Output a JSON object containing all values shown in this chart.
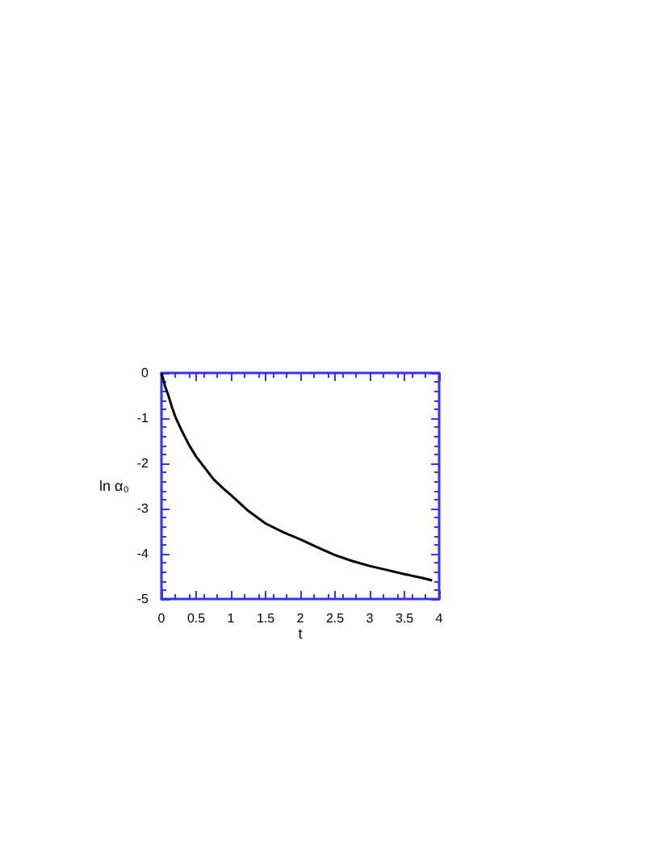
{
  "chart_data": {
    "type": "line",
    "xlabel": "t",
    "ylabel": "ln α₀",
    "x": [
      0,
      0.05,
      0.1,
      0.15,
      0.2,
      0.3,
      0.4,
      0.5,
      0.6,
      0.75,
      0.9,
      1,
      1.25,
      1.5,
      1.75,
      2,
      2.25,
      2.5,
      2.75,
      3,
      3.25,
      3.5,
      3.75,
      3.9
    ],
    "series": [
      {
        "color": "#000000",
        "values": [
          0,
          -0.28,
          -0.5,
          -0.75,
          -0.97,
          -1.3,
          -1.6,
          -1.85,
          -2.05,
          -2.35,
          -2.57,
          -2.7,
          -3.05,
          -3.33,
          -3.52,
          -3.68,
          -3.86,
          -4.03,
          -4.16,
          -4.27,
          -4.36,
          -4.45,
          -4.53,
          -4.59
        ]
      }
    ],
    "xlim": [
      0,
      4
    ],
    "xticks": [
      0,
      0.5,
      1,
      1.5,
      2,
      2.5,
      3,
      3.5,
      4
    ],
    "ylim": [
      -5,
      0
    ],
    "yticks": [
      -5,
      -4,
      -3,
      -2,
      -1,
      0
    ],
    "grid": false,
    "marker": "none",
    "line_style": "solid"
  }
}
